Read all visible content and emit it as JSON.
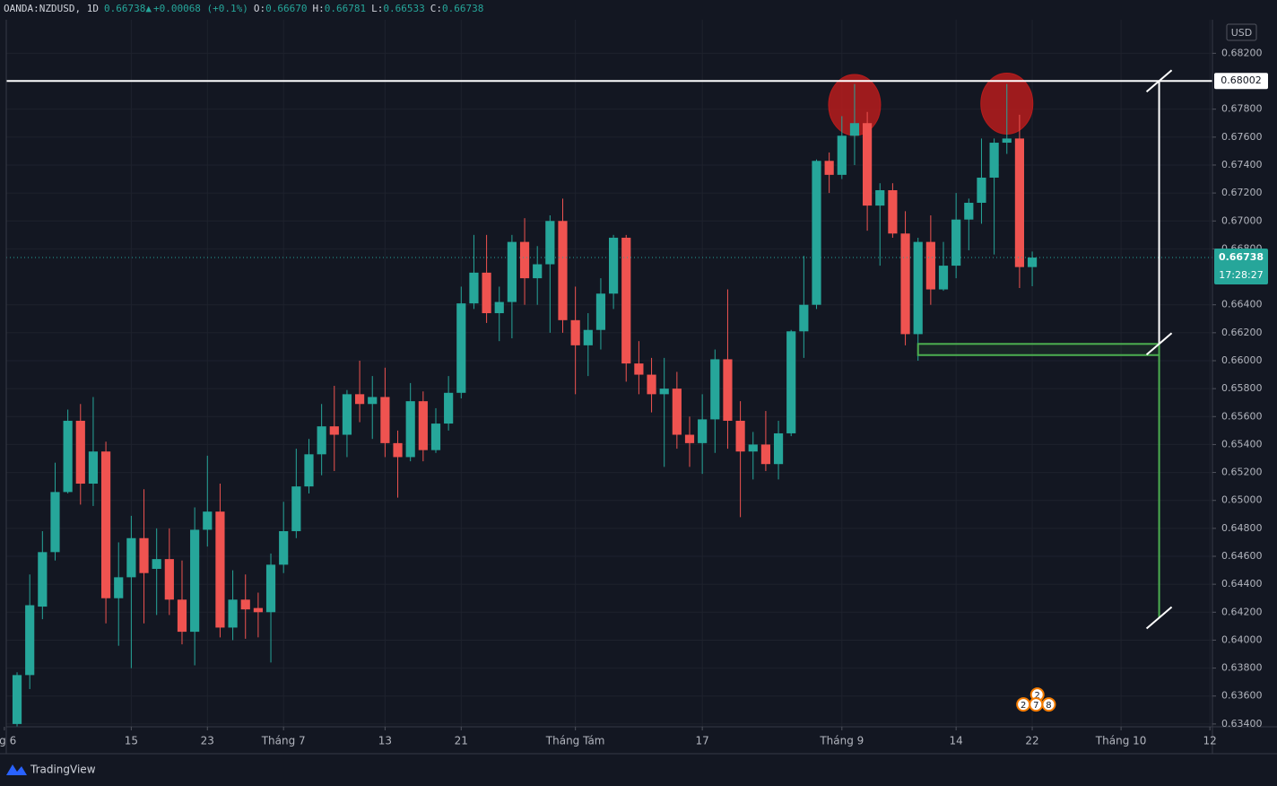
{
  "chart_data": {
    "type": "candlestick",
    "title": "OANDA:NZDUSD, 1D",
    "last": "0.66738",
    "arrow": "▲",
    "change": "+0.00068 (+0.1%)",
    "ohlc_labels": [
      {
        "label": "O:",
        "value": "0.66670"
      },
      {
        "label": "H:",
        "value": "0.66781"
      },
      {
        "label": "L:",
        "value": "0.66533"
      },
      {
        "label": "C:",
        "value": "0.66738"
      }
    ],
    "currency": "USD",
    "up_color": "#26a69a",
    "down_color": "#ef5350",
    "open": [
      0.634,
      0.6375,
      0.6424,
      0.6463,
      0.6506,
      0.6557,
      0.6512,
      0.6535,
      0.643,
      0.6445,
      0.6473,
      0.6451,
      0.6458,
      0.6429,
      0.6406,
      0.6479,
      0.6492,
      0.6409,
      0.6429,
      0.6423,
      0.642,
      0.6454,
      0.6478,
      0.651,
      0.6533,
      0.6553,
      0.6547,
      0.6576,
      0.6569,
      0.6574,
      0.6541,
      0.6531,
      0.6571,
      0.6536,
      0.6555,
      0.6577,
      0.6641,
      0.6663,
      0.6634,
      0.6642,
      0.6685,
      0.6659,
      0.6669,
      0.67,
      0.6629,
      0.6611,
      0.6622,
      0.6648,
      0.6688,
      0.6598,
      0.659,
      0.6576,
      0.658,
      0.6547,
      0.6541,
      0.6558,
      0.6601,
      0.6557,
      0.6535,
      0.654,
      0.6526,
      0.6548,
      0.6621,
      0.664,
      0.6743,
      0.6733,
      0.6761,
      0.677,
      0.6711,
      0.6722,
      0.6691,
      0.6619,
      0.6685,
      0.6651,
      0.6668,
      0.6701,
      0.6713,
      0.6731,
      0.6756,
      0.6759,
      0.6667
    ],
    "high": [
      0.6377,
      0.6447,
      0.6478,
      0.6527,
      0.6565,
      0.6569,
      0.6574,
      0.6542,
      0.647,
      0.6489,
      0.6508,
      0.648,
      0.648,
      0.6457,
      0.6495,
      0.6532,
      0.6512,
      0.645,
      0.6447,
      0.6434,
      0.6462,
      0.6499,
      0.6537,
      0.6544,
      0.6569,
      0.6582,
      0.6579,
      0.66,
      0.6589,
      0.6595,
      0.655,
      0.6584,
      0.6578,
      0.6566,
      0.6589,
      0.6653,
      0.669,
      0.669,
      0.6653,
      0.669,
      0.6702,
      0.6682,
      0.6704,
      0.6716,
      0.6653,
      0.6634,
      0.6659,
      0.669,
      0.669,
      0.6614,
      0.6602,
      0.6602,
      0.6592,
      0.656,
      0.6576,
      0.6608,
      0.6651,
      0.6571,
      0.6549,
      0.6564,
      0.6557,
      0.6622,
      0.6675,
      0.6744,
      0.6749,
      0.6775,
      0.6798,
      0.6778,
      0.6727,
      0.6727,
      0.6707,
      0.6688,
      0.6704,
      0.6685,
      0.672,
      0.6716,
      0.6759,
      0.6759,
      0.6798,
      0.6776,
      0.66781
    ],
    "low": [
      0.6335,
      0.6365,
      0.6415,
      0.6457,
      0.6505,
      0.6497,
      0.6496,
      0.6412,
      0.6396,
      0.638,
      0.6412,
      0.6418,
      0.6418,
      0.6397,
      0.6382,
      0.6467,
      0.6402,
      0.64,
      0.6401,
      0.6402,
      0.6384,
      0.6448,
      0.6473,
      0.6505,
      0.6518,
      0.6521,
      0.6531,
      0.6556,
      0.6544,
      0.6531,
      0.6502,
      0.6528,
      0.6528,
      0.6534,
      0.655,
      0.6573,
      0.6637,
      0.6627,
      0.6614,
      0.6616,
      0.664,
      0.664,
      0.662,
      0.662,
      0.6576,
      0.6589,
      0.6608,
      0.6637,
      0.6585,
      0.6576,
      0.6563,
      0.6524,
      0.6537,
      0.6524,
      0.6519,
      0.6534,
      0.6537,
      0.6488,
      0.6515,
      0.6521,
      0.6515,
      0.6546,
      0.6602,
      0.6637,
      0.672,
      0.673,
      0.674,
      0.6693,
      0.6668,
      0.6688,
      0.6611,
      0.66,
      0.664,
      0.665,
      0.6659,
      0.6679,
      0.6698,
      0.6676,
      0.6748,
      0.6652,
      0.66533
    ],
    "close": [
      0.6375,
      0.6425,
      0.6463,
      0.6506,
      0.6557,
      0.6512,
      0.6535,
      0.643,
      0.6445,
      0.6473,
      0.6448,
      0.6458,
      0.6429,
      0.6406,
      0.6479,
      0.6492,
      0.6409,
      0.6429,
      0.6422,
      0.642,
      0.6454,
      0.6478,
      0.651,
      0.6533,
      0.6553,
      0.6547,
      0.6576,
      0.6569,
      0.6574,
      0.6541,
      0.6531,
      0.6571,
      0.6536,
      0.6555,
      0.6577,
      0.6641,
      0.6663,
      0.6634,
      0.6642,
      0.6685,
      0.6659,
      0.6669,
      0.67,
      0.6629,
      0.6611,
      0.6622,
      0.6648,
      0.6688,
      0.6598,
      0.659,
      0.6576,
      0.658,
      0.6547,
      0.6541,
      0.6558,
      0.6601,
      0.6557,
      0.6535,
      0.654,
      0.6526,
      0.6548,
      0.6621,
      0.664,
      0.6743,
      0.6733,
      0.6761,
      0.677,
      0.6711,
      0.6722,
      0.6691,
      0.6619,
      0.6685,
      0.6651,
      0.6668,
      0.6701,
      0.6713,
      0.6731,
      0.6756,
      0.6759,
      0.6667,
      0.66738
    ],
    "xlim": [
      -0.85,
      94.2
    ],
    "xticks": [
      {
        "value": -1,
        "label": "ng 6"
      },
      {
        "value": 9,
        "label": "15"
      },
      {
        "value": 15,
        "label": "23"
      },
      {
        "value": 21,
        "label": "Tháng 7"
      },
      {
        "value": 29,
        "label": "13"
      },
      {
        "value": 35,
        "label": "21"
      },
      {
        "value": 44,
        "label": "Tháng Tám"
      },
      {
        "value": 54,
        "label": "17"
      },
      {
        "value": 65,
        "label": "Tháng 9"
      },
      {
        "value": 74,
        "label": "14"
      },
      {
        "value": 80,
        "label": "22"
      },
      {
        "value": 87,
        "label": "Tháng 10"
      },
      {
        "value": 94,
        "label": "12"
      }
    ],
    "ylim": [
      0.6338,
      0.6844
    ],
    "yticks": [
      {
        "value": 0.634,
        "label": "0.63400"
      },
      {
        "value": 0.636,
        "label": "0.63600"
      },
      {
        "value": 0.638,
        "label": "0.63800"
      },
      {
        "value": 0.64,
        "label": "0.64000"
      },
      {
        "value": 0.642,
        "label": "0.64200"
      },
      {
        "value": 0.644,
        "label": "0.64400"
      },
      {
        "value": 0.646,
        "label": "0.64600"
      },
      {
        "value": 0.648,
        "label": "0.64800"
      },
      {
        "value": 0.65,
        "label": "0.65000"
      },
      {
        "value": 0.652,
        "label": "0.65200"
      },
      {
        "value": 0.654,
        "label": "0.65400"
      },
      {
        "value": 0.656,
        "label": "0.65600"
      },
      {
        "value": 0.658,
        "label": "0.65800"
      },
      {
        "value": 0.66,
        "label": "0.66000"
      },
      {
        "value": 0.662,
        "label": "0.66200"
      },
      {
        "value": 0.664,
        "label": "0.66400"
      },
      {
        "value": 0.668,
        "label": "0.66800"
      },
      {
        "value": 0.67,
        "label": "0.67000"
      },
      {
        "value": 0.672,
        "label": "0.67200"
      },
      {
        "value": 0.674,
        "label": "0.67400"
      },
      {
        "value": 0.676,
        "label": "0.67600"
      },
      {
        "value": 0.678,
        "label": "0.67800"
      },
      {
        "value": 0.682,
        "label": "0.68200"
      }
    ],
    "grid": true,
    "price_line": {
      "value": 0.68002,
      "label": "0.68002"
    },
    "last_price": {
      "value": 0.66738,
      "label": "0.66738",
      "countdown": "17:28:27"
    },
    "highlights": [
      {
        "x": 66,
        "y": 0.6783
      },
      {
        "x": 78,
        "y": 0.6784
      }
    ],
    "zone": {
      "x": [
        71,
        90
      ],
      "y": [
        0.6604,
        0.6612
      ]
    },
    "measure": {
      "x": 90,
      "levels": [
        0.68002,
        0.6612,
        0.6604,
        0.6416
      ]
    },
    "events": [
      {
        "x": 80.4,
        "y": 0.6361,
        "label": "2"
      },
      {
        "x": 79.3,
        "y": 0.6354,
        "label": "2"
      },
      {
        "x": 80.3,
        "y": 0.6354,
        "label": "7"
      },
      {
        "x": 81.3,
        "y": 0.6354,
        "label": "8"
      }
    ],
    "brand": "TradingView"
  }
}
